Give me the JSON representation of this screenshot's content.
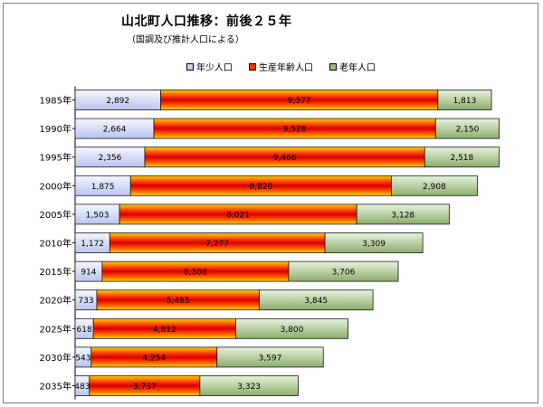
{
  "title": "山北町人口推移：前後２５年",
  "subtitle": "（国調及び推計人口による）",
  "colors": {
    "young_fill_top": "#f4f6ff",
    "young_fill_bottom": "#b9c6ee",
    "working_top": "#ffd400",
    "working_mid": "#ff4000",
    "working_center": "#d40000",
    "old_fill_top": "#e8f2dd",
    "old_fill_bottom": "#8cae6c",
    "border": "#1a1a1a"
  },
  "legend": [
    {
      "label": "年少人口",
      "key": "young",
      "swatch": "#c6d2f2"
    },
    {
      "label": "生産年齢人口",
      "key": "working",
      "swatch": "#ff3000"
    },
    {
      "label": "老年人口",
      "key": "old",
      "swatch": "#9dbb7e"
    }
  ],
  "chart_data": {
    "type": "bar",
    "orientation": "horizontal",
    "stacked": true,
    "categories": [
      "1985年",
      "1990年",
      "1995年",
      "2000年",
      "2005年",
      "2010年",
      "2015年",
      "2020年",
      "2025年",
      "2030年",
      "2035年"
    ],
    "series": [
      {
        "name": "年少人口",
        "values": [
          2892,
          2664,
          2356,
          1875,
          1503,
          1172,
          914,
          733,
          618,
          543,
          483
        ]
      },
      {
        "name": "生産年齢人口",
        "values": [
          9377,
          9528,
          9466,
          8820,
          8021,
          7277,
          6308,
          5495,
          4812,
          4254,
          3737
        ]
      },
      {
        "name": "老年人口",
        "values": [
          1813,
          2150,
          2518,
          2908,
          3128,
          3309,
          3706,
          3845,
          3800,
          3597,
          3323
        ]
      }
    ],
    "xlim": [
      0,
      14600
    ],
    "legend_position": "top",
    "grid": false
  }
}
